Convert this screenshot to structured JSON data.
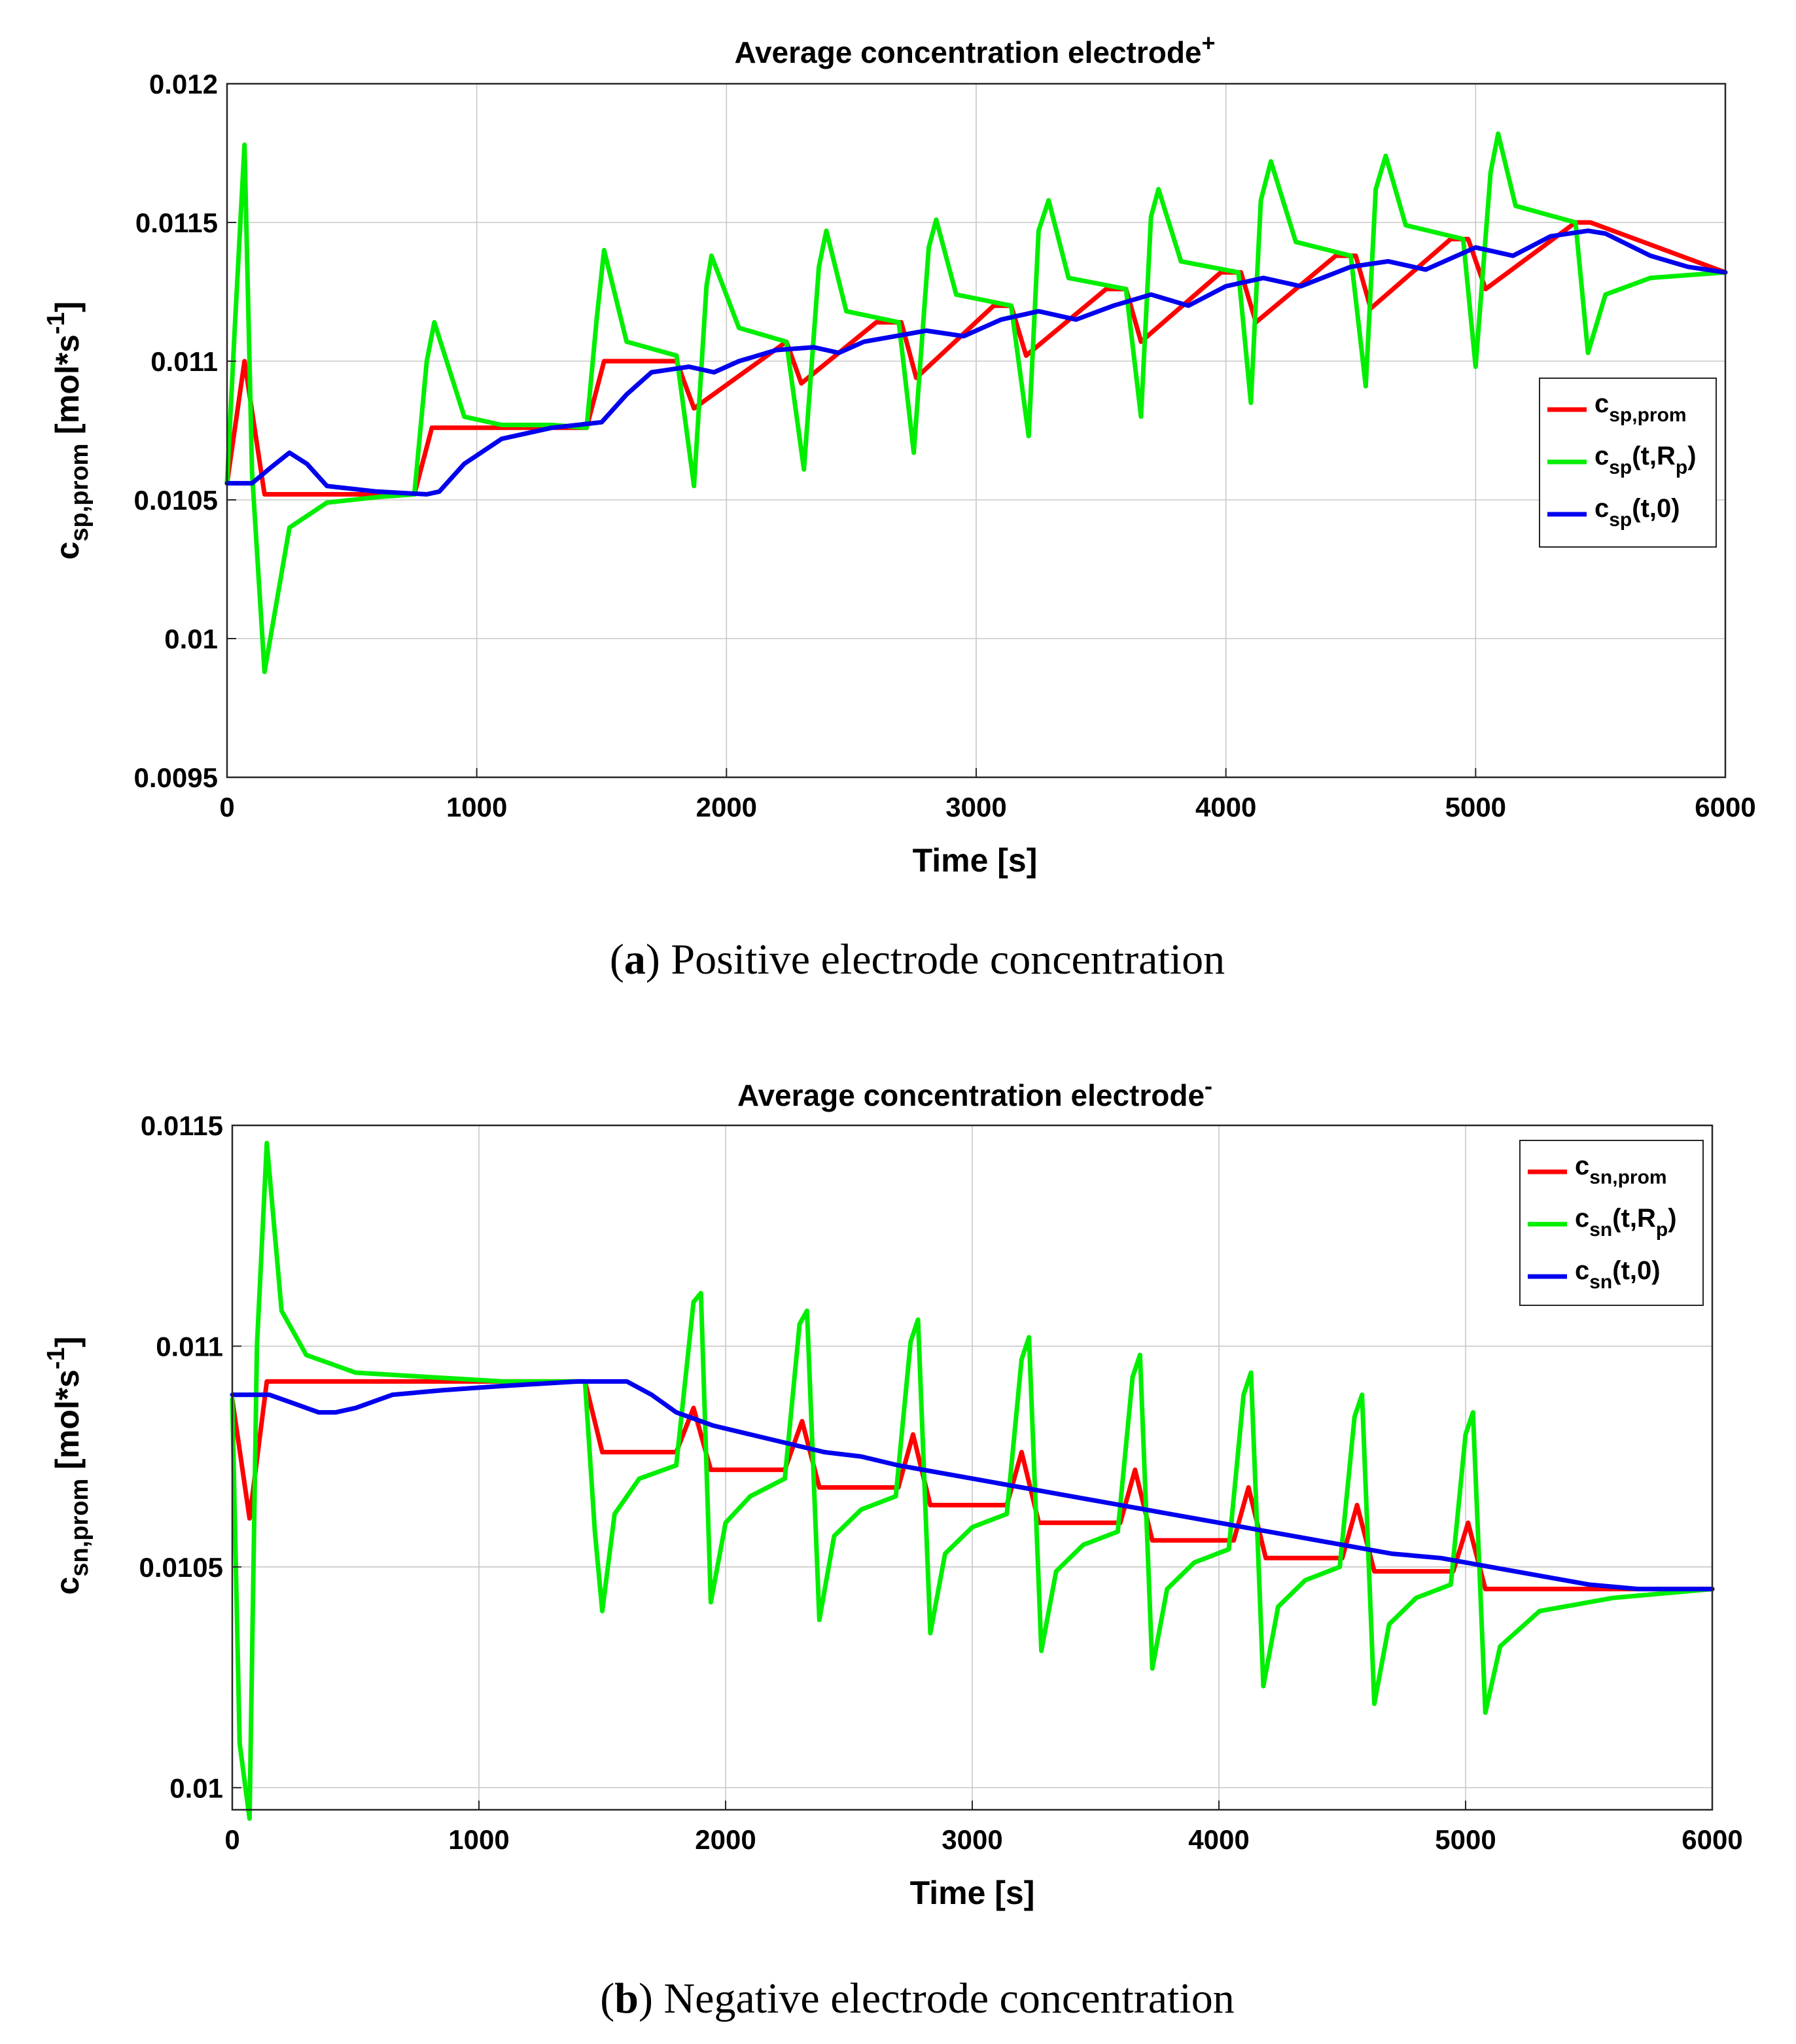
{
  "chart_data": [
    {
      "type": "line",
      "title": "Average concentration electrode",
      "title_sup": "+",
      "xlabel": "Time [s]",
      "ylabel": {
        "base": "c",
        "sub": "sp,prom",
        "unit_open": " [mol*s",
        "unit_sup": "-1",
        "unit_close": "]"
      },
      "xlim": [
        0,
        6000
      ],
      "ylim": [
        0.0095,
        0.012
      ],
      "xticks": [
        0,
        1000,
        2000,
        3000,
        4000,
        5000,
        6000
      ],
      "xtick_labels": [
        "0",
        "1000",
        "2000",
        "3000",
        "4000",
        "5000",
        "6000"
      ],
      "yticks": [
        0.0095,
        0.01,
        0.0105,
        0.011,
        0.0115,
        0.012
      ],
      "ytick_labels": [
        "0.0095",
        "0.01",
        "0.0105",
        "0.011",
        "0.0115",
        "0.012"
      ],
      "grid": true,
      "legend_position": "center-right",
      "caption": {
        "letter": "a",
        "text": " Positive electrode concentration"
      },
      "series": [
        {
          "name": "c_sp,prom",
          "label": "c",
          "label_sub": "sp,prom",
          "label_tail": "",
          "label_tail_sub": "",
          "label_end": "",
          "color": "#ff0000",
          "x": [
            0,
            70,
            150,
            750,
            820,
            1440,
            1510,
            1800,
            1870,
            2240,
            2300,
            2600,
            2700,
            2760,
            3070,
            3140,
            3200,
            3520,
            3600,
            3660,
            3980,
            4060,
            4120,
            4440,
            4520,
            4580,
            4900,
            4970,
            5040,
            5400,
            5460,
            6000
          ],
          "y": [
            0.01056,
            0.011,
            0.01052,
            0.01052,
            0.01076,
            0.01076,
            0.011,
            0.011,
            0.01083,
            0.01107,
            0.01092,
            0.01114,
            0.01114,
            0.01094,
            0.0112,
            0.0112,
            0.01102,
            0.01126,
            0.01126,
            0.01107,
            0.01132,
            0.01132,
            0.01114,
            0.01138,
            0.01138,
            0.01119,
            0.01144,
            0.01144,
            0.01126,
            0.0115,
            0.0115,
            0.01132
          ]
        },
        {
          "name": "c_sp(t,R_p)",
          "label": "c",
          "label_sub": "sp",
          "label_tail": "(t,R",
          "label_tail_sub": "p",
          "label_end": ")",
          "color": "#00ee00",
          "x": [
            0,
            30,
            70,
            100,
            150,
            250,
            400,
            600,
            750,
            800,
            830,
            950,
            1100,
            1300,
            1440,
            1480,
            1510,
            1600,
            1800,
            1870,
            1920,
            1940,
            2050,
            2240,
            2310,
            2370,
            2400,
            2480,
            2690,
            2750,
            2810,
            2840,
            2920,
            3140,
            3210,
            3250,
            3290,
            3370,
            3600,
            3660,
            3700,
            3730,
            3820,
            4050,
            4100,
            4140,
            4180,
            4280,
            4500,
            4560,
            4600,
            4640,
            4720,
            4950,
            5000,
            5060,
            5090,
            5160,
            5400,
            5450,
            5520,
            5700,
            6000
          ],
          "y": [
            0.01056,
            0.0111,
            0.01178,
            0.0106,
            0.00988,
            0.0104,
            0.01049,
            0.01051,
            0.01052,
            0.011,
            0.01114,
            0.0108,
            0.01077,
            0.01077,
            0.01076,
            0.01115,
            0.0114,
            0.01107,
            0.01102,
            0.01055,
            0.01127,
            0.01138,
            0.01112,
            0.01107,
            0.01061,
            0.01134,
            0.01147,
            0.01118,
            0.01114,
            0.01067,
            0.01141,
            0.01151,
            0.01124,
            0.0112,
            0.01073,
            0.01147,
            0.01158,
            0.0113,
            0.01126,
            0.0108,
            0.01152,
            0.01162,
            0.01136,
            0.01132,
            0.01085,
            0.01158,
            0.01172,
            0.01143,
            0.01138,
            0.01091,
            0.01162,
            0.01174,
            0.01149,
            0.01144,
            0.01098,
            0.01168,
            0.01182,
            0.01156,
            0.0115,
            0.01103,
            0.01124,
            0.0113,
            0.01132
          ]
        },
        {
          "name": "c_sp(t,0)",
          "label": "c",
          "label_sub": "sp",
          "label_tail": "(t,0)",
          "label_tail_sub": "",
          "label_end": "",
          "color": "#0000ee",
          "x": [
            0,
            100,
            180,
            250,
            320,
            400,
            600,
            800,
            850,
            950,
            1100,
            1300,
            1500,
            1600,
            1700,
            1850,
            1950,
            2050,
            2200,
            2350,
            2450,
            2550,
            2800,
            2950,
            3100,
            3250,
            3400,
            3550,
            3700,
            3850,
            4000,
            4150,
            4300,
            4500,
            4650,
            4800,
            5000,
            5150,
            5300,
            5450,
            5520,
            5700,
            5850,
            6000
          ],
          "y": [
            0.01056,
            0.01056,
            0.01062,
            0.01067,
            0.01063,
            0.01055,
            0.01053,
            0.01052,
            0.01053,
            0.01063,
            0.01072,
            0.01076,
            0.01078,
            0.01088,
            0.01096,
            0.01098,
            0.01096,
            0.011,
            0.01104,
            0.01105,
            0.01103,
            0.01107,
            0.01111,
            0.01109,
            0.01115,
            0.01118,
            0.01115,
            0.0112,
            0.01124,
            0.0112,
            0.01127,
            0.0113,
            0.01127,
            0.01134,
            0.01136,
            0.01133,
            0.01141,
            0.01138,
            0.01145,
            0.01147,
            0.01146,
            0.01138,
            0.01134,
            0.01132
          ]
        }
      ]
    },
    {
      "type": "line",
      "title": "Average concentration electrode",
      "title_sup": "-",
      "xlabel": "Time [s]",
      "ylabel": {
        "base": "c",
        "sub": "sn,prom",
        "unit_open": " [mol*s",
        "unit_sup": "-1",
        "unit_close": "]"
      },
      "xlim": [
        0,
        6000
      ],
      "ylim": [
        0.00995,
        0.0115
      ],
      "xticks": [
        0,
        1000,
        2000,
        3000,
        4000,
        5000,
        6000
      ],
      "xtick_labels": [
        "0",
        "1000",
        "2000",
        "3000",
        "4000",
        "5000",
        "6000"
      ],
      "yticks": [
        0.01,
        0.0105,
        0.011,
        0.0115
      ],
      "ytick_labels": [
        "0.01",
        "0.0105",
        "0.011",
        "0.0115"
      ],
      "grid": true,
      "legend_position": "top-right",
      "caption": {
        "letter": "b",
        "text": " Negative electrode concentration"
      },
      "series": [
        {
          "name": "c_sn,prom",
          "label": "c",
          "label_sub": "sn,prom",
          "label_tail": "",
          "label_tail_sub": "",
          "label_end": "",
          "color": "#ff0000",
          "x": [
            0,
            70,
            140,
            1430,
            1500,
            1800,
            1870,
            1940,
            2240,
            2310,
            2380,
            2700,
            2760,
            2830,
            3140,
            3200,
            3270,
            3600,
            3660,
            3730,
            4060,
            4120,
            4190,
            4500,
            4560,
            4630,
            4950,
            5010,
            5080,
            6000
          ],
          "y": [
            0.01088,
            0.01061,
            0.01092,
            0.01092,
            0.01076,
            0.01076,
            0.01086,
            0.01072,
            0.01072,
            0.01083,
            0.01068,
            0.01068,
            0.0108,
            0.01064,
            0.01064,
            0.01076,
            0.0106,
            0.0106,
            0.01072,
            0.01056,
            0.01056,
            0.01068,
            0.01052,
            0.01052,
            0.01064,
            0.01049,
            0.01049,
            0.0106,
            0.01045,
            0.01045
          ]
        },
        {
          "name": "c_sn(t,R_p)",
          "label": "c",
          "label_sub": "sn",
          "label_tail": "(t,R",
          "label_tail_sub": "p",
          "label_end": ")",
          "color": "#00ee00",
          "x": [
            0,
            30,
            70,
            100,
            140,
            200,
            300,
            500,
            800,
            1100,
            1430,
            1470,
            1500,
            1550,
            1650,
            1800,
            1870,
            1900,
            1940,
            2000,
            2100,
            2240,
            2300,
            2330,
            2380,
            2440,
            2550,
            2690,
            2750,
            2780,
            2830,
            2890,
            3000,
            3140,
            3200,
            3230,
            3280,
            3340,
            3450,
            3590,
            3650,
            3680,
            3730,
            3790,
            3900,
            4040,
            4100,
            4130,
            4180,
            4240,
            4350,
            4490,
            4550,
            4580,
            4630,
            4690,
            4800,
            4940,
            5000,
            5030,
            5080,
            5140,
            5300,
            5600,
            6000
          ],
          "y": [
            0.01088,
            0.0101,
            0.00993,
            0.011,
            0.01146,
            0.01108,
            0.01098,
            0.01094,
            0.01093,
            0.01092,
            0.01092,
            0.01058,
            0.0104,
            0.01062,
            0.0107,
            0.01073,
            0.0111,
            0.01112,
            0.01042,
            0.0106,
            0.01066,
            0.0107,
            0.01105,
            0.01108,
            0.01038,
            0.01057,
            0.01063,
            0.01066,
            0.01101,
            0.01106,
            0.01035,
            0.01053,
            0.01059,
            0.01062,
            0.01097,
            0.01102,
            0.01031,
            0.01049,
            0.01055,
            0.01058,
            0.01093,
            0.01098,
            0.01027,
            0.01045,
            0.01051,
            0.01054,
            0.01089,
            0.01094,
            0.01023,
            0.01041,
            0.01047,
            0.0105,
            0.01084,
            0.01089,
            0.01019,
            0.01037,
            0.01043,
            0.01046,
            0.0108,
            0.01085,
            0.01017,
            0.01032,
            0.0104,
            0.01043,
            0.01045
          ]
        },
        {
          "name": "c_sn(t,0)",
          "label": "c",
          "label_sub": "sn",
          "label_tail": "(t,0)",
          "label_tail_sub": "",
          "label_end": "",
          "color": "#0000ee",
          "x": [
            0,
            150,
            250,
            350,
            420,
            500,
            650,
            850,
            1100,
            1400,
            1600,
            1700,
            1800,
            1950,
            2100,
            2250,
            2400,
            2550,
            2700,
            2900,
            3100,
            3300,
            3500,
            3700,
            3900,
            4100,
            4300,
            4500,
            4700,
            4900,
            5100,
            5300,
            5500,
            5700,
            6000
          ],
          "y": [
            0.01089,
            0.01089,
            0.01087,
            0.01085,
            0.01085,
            0.01086,
            0.01089,
            0.0109,
            0.01091,
            0.01092,
            0.01092,
            0.01089,
            0.01085,
            0.01082,
            0.0108,
            0.01078,
            0.01076,
            0.01075,
            0.01073,
            0.01071,
            0.01069,
            0.01067,
            0.01065,
            0.01063,
            0.01061,
            0.01059,
            0.01057,
            0.01055,
            0.01053,
            0.01052,
            0.0105,
            0.01048,
            0.01046,
            0.01045,
            0.01045
          ]
        }
      ]
    }
  ]
}
